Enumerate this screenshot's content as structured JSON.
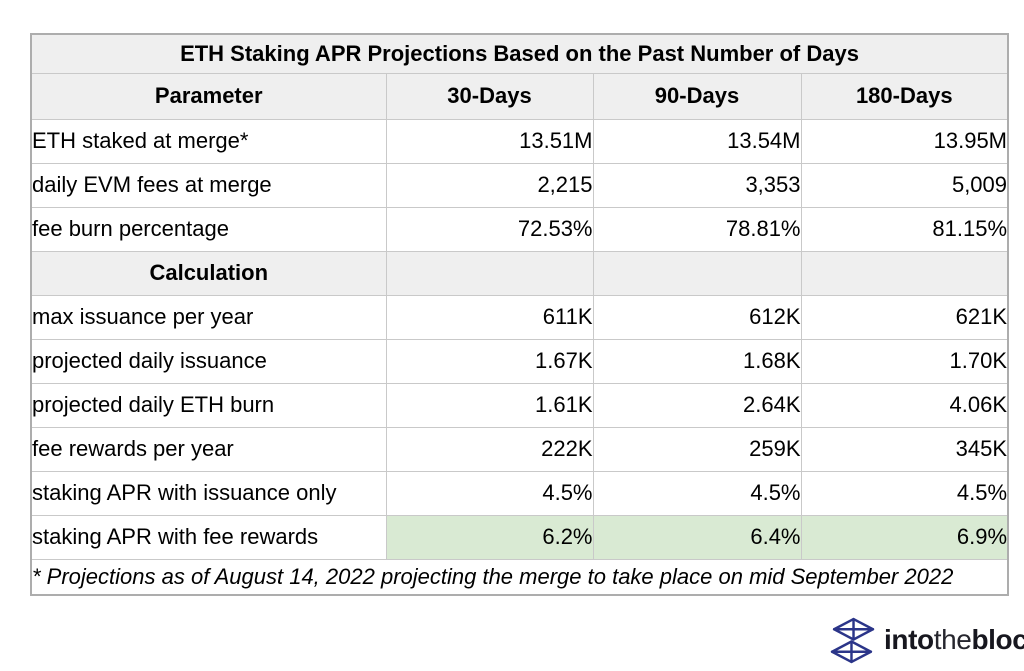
{
  "table": {
    "title": "ETH Staking APR Projections Based on the Past Number of Days",
    "columns": [
      "Parameter",
      "30-Days",
      "90-Days",
      "180-Days"
    ],
    "sections": [
      {
        "rows": [
          {
            "label": "ETH staked at merge*",
            "values": [
              "13.51M",
              "13.54M",
              "13.95M"
            ]
          },
          {
            "label": "daily EVM fees at merge",
            "values": [
              "2,215",
              "3,353",
              "5,009"
            ]
          },
          {
            "label": "fee burn percentage",
            "values": [
              "72.53%",
              "78.81%",
              "81.15%"
            ]
          }
        ]
      },
      {
        "header": "Calculation",
        "rows": [
          {
            "label": "max issuance per year",
            "values": [
              "611K",
              "612K",
              "621K"
            ]
          },
          {
            "label": "projected daily issuance",
            "values": [
              "1.67K",
              "1.68K",
              "1.70K"
            ]
          },
          {
            "label": "projected daily ETH burn",
            "values": [
              "1.61K",
              "2.64K",
              "4.06K"
            ]
          },
          {
            "label": "fee rewards per year",
            "values": [
              "222K",
              "259K",
              "345K"
            ]
          },
          {
            "label": "staking APR with issuance only",
            "values": [
              "4.5%",
              "4.5%",
              "4.5%"
            ]
          },
          {
            "label": "staking APR with fee rewards",
            "values": [
              "6.2%",
              "6.4%",
              "6.9%"
            ],
            "highlight": true
          }
        ]
      }
    ],
    "footnote": "* Projections as of August 14, 2022 projecting the merge to take place on mid September 2022"
  },
  "branding": {
    "icon": "intotheblock-cube-icon",
    "wordmark": {
      "part1": "into",
      "part2": "the",
      "part3": "block"
    }
  },
  "colors": {
    "header_bg": "#efefef",
    "highlight_bg": "#d9ead3",
    "grid_border": "#c9c9c9",
    "outer_border": "#adadad",
    "logo_navy": "#2b3589",
    "text": "#000000"
  },
  "chart_data": {
    "type": "table",
    "title": "ETH Staking APR Projections Based on the Past Number of Days",
    "columns": [
      "Parameter",
      "30-Days",
      "90-Days",
      "180-Days"
    ],
    "rows": [
      [
        "ETH staked at merge*",
        "13.51M",
        "13.54M",
        "13.95M"
      ],
      [
        "daily EVM fees at merge",
        "2,215",
        "3,353",
        "5,009"
      ],
      [
        "fee burn percentage",
        "72.53%",
        "78.81%",
        "81.15%"
      ],
      [
        "Calculation",
        "",
        "",
        ""
      ],
      [
        "max issuance per year",
        "611K",
        "612K",
        "621K"
      ],
      [
        "projected daily issuance",
        "1.67K",
        "1.68K",
        "1.70K"
      ],
      [
        "projected daily ETH burn",
        "1.61K",
        "2.64K",
        "4.06K"
      ],
      [
        "fee rewards per year",
        "222K",
        "259K",
        "345K"
      ],
      [
        "staking APR with issuance only",
        "4.5%",
        "4.5%",
        "4.5%"
      ],
      [
        "staking APR with fee rewards",
        "6.2%",
        "6.4%",
        "6.9%"
      ]
    ],
    "highlighted_row": "staking APR with fee rewards",
    "footnote": "* Projections as of August 14, 2022 projecting the merge to take place on mid September 2022"
  }
}
